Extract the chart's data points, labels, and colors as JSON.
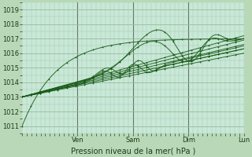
{
  "bg_color": "#b8d8b8",
  "plot_bg_color": "#c8e8d8",
  "grid_color": "#99bb99",
  "line_color": "#1a5c1a",
  "title": "Pression niveau de la mer( hPa )",
  "xlim": [
    0,
    96
  ],
  "ylim": [
    1010.5,
    1019.5
  ],
  "yticks": [
    1011,
    1012,
    1013,
    1014,
    1015,
    1016,
    1017,
    1018,
    1019
  ],
  "day_ticks": [
    24,
    48,
    72,
    96
  ],
  "day_labels": [
    "Ven",
    "Sam",
    "Dim",
    "Lun"
  ],
  "figsize": [
    3.2,
    2.0
  ],
  "dpi": 100
}
